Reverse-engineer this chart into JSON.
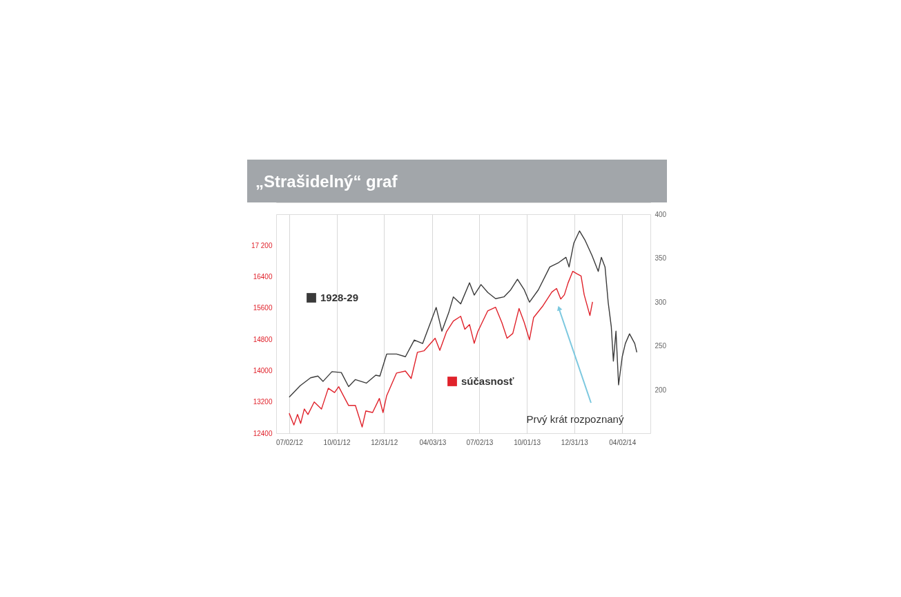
{
  "chart_data": {
    "type": "line",
    "title": "„Strašidelný“ graf",
    "series": [
      {
        "name": "súčasnosť",
        "color": "#e0222b",
        "axis": "y",
        "x": [
          "2012-07-02",
          "2012-07-11",
          "2012-07-18",
          "2012-07-24",
          "2012-07-31",
          "2012-08-07",
          "2012-08-19",
          "2012-09-02",
          "2012-09-15",
          "2012-09-27",
          "2012-10-05",
          "2012-10-14",
          "2012-10-24",
          "2012-11-06",
          "2012-11-19",
          "2012-11-26",
          "2012-12-09",
          "2012-12-22",
          "2012-12-29",
          "2013-01-05",
          "2013-01-24",
          "2013-02-10",
          "2013-02-21",
          "2013-03-05",
          "2013-03-18",
          "2013-04-08",
          "2013-04-17",
          "2013-04-30",
          "2013-05-13",
          "2013-05-27",
          "2013-06-04",
          "2013-06-13",
          "2013-06-22",
          "2013-06-29",
          "2013-07-18",
          "2013-08-02",
          "2013-08-14",
          "2013-08-24",
          "2013-09-04",
          "2013-09-16",
          "2013-09-26",
          "2013-10-06",
          "2013-10-14",
          "2013-11-01",
          "2013-11-18",
          "2013-11-27",
          "2013-12-05",
          "2013-12-12",
          "2013-12-19",
          "2013-12-28",
          "2014-01-06",
          "2014-01-13",
          "2014-01-19",
          "2014-01-30",
          "2014-02-04"
        ],
        "values": [
          12910,
          12610,
          12880,
          12650,
          13020,
          12880,
          13200,
          13020,
          13550,
          13440,
          13590,
          13360,
          13110,
          13110,
          12560,
          12970,
          12930,
          13290,
          12930,
          13360,
          13940,
          13990,
          13800,
          14470,
          14510,
          14830,
          14520,
          15000,
          15270,
          15390,
          15060,
          15180,
          14700,
          15000,
          15530,
          15620,
          15230,
          14830,
          14950,
          15590,
          15230,
          14790,
          15360,
          15660,
          16010,
          16100,
          15830,
          15940,
          16240,
          16540,
          16470,
          16420,
          15940,
          15410,
          15760
        ]
      },
      {
        "name": "1928-29",
        "color": "#3a3a3a",
        "axis": "y2",
        "x": [
          "2012-07-02",
          "2012-07-23",
          "2012-08-12",
          "2012-08-26",
          "2012-09-05",
          "2012-09-22",
          "2012-10-10",
          "2012-10-24",
          "2012-11-06",
          "2012-11-27",
          "2012-12-15",
          "2012-12-23",
          "2013-01-05",
          "2013-01-24",
          "2013-02-10",
          "2013-02-27",
          "2013-03-15",
          "2013-04-10",
          "2013-04-21",
          "2013-05-04",
          "2013-05-13",
          "2013-05-27",
          "2013-06-13",
          "2013-06-22",
          "2013-07-05",
          "2013-07-18",
          "2013-08-02",
          "2013-08-18",
          "2013-08-31",
          "2013-09-13",
          "2013-09-26",
          "2013-10-06",
          "2013-10-23",
          "2013-11-14",
          "2013-12-01",
          "2013-12-15",
          "2013-12-21",
          "2013-12-30",
          "2014-01-10",
          "2014-01-21",
          "2014-02-03",
          "2014-02-15",
          "2014-02-21",
          "2014-02-28",
          "2014-03-06",
          "2014-03-12",
          "2014-03-16",
          "2014-03-21",
          "2014-03-26",
          "2014-04-02",
          "2014-04-08",
          "2014-04-16",
          "2014-04-26",
          "2014-04-30"
        ],
        "values": [
          192,
          205,
          214,
          216,
          210,
          221,
          220,
          204,
          212,
          208,
          217,
          216,
          241,
          241,
          238,
          257,
          253,
          294,
          267,
          288,
          306,
          298,
          322,
          308,
          320,
          311,
          304,
          306,
          314,
          326,
          314,
          300,
          314,
          340,
          345,
          351,
          340,
          367,
          381,
          370,
          353,
          335,
          351,
          340,
          300,
          272,
          233,
          267,
          206,
          238,
          253,
          264,
          253,
          243
        ]
      }
    ],
    "xlim": [
      "2012-06-07",
      "2014-05-26"
    ],
    "xticks": [
      {
        "value": "2012-07-02",
        "label": "07/02/12"
      },
      {
        "value": "2012-10-01",
        "label": "10/01/12"
      },
      {
        "value": "2012-12-31",
        "label": "12/31/12"
      },
      {
        "value": "2013-04-03",
        "label": "04/03/13"
      },
      {
        "value": "2013-07-02",
        "label": "07/02/13"
      },
      {
        "value": "2013-10-01",
        "label": "10/01/13"
      },
      {
        "value": "2013-12-31",
        "label": "12/31/13"
      },
      {
        "value": "2014-04-02",
        "label": "04/02/14"
      }
    ],
    "ylim": [
      12400,
      18000
    ],
    "yticks": [
      12400,
      13200,
      14000,
      14800,
      15600,
      16400,
      {
        "value": 17200,
        "label": "17 200"
      }
    ],
    "y2lim": [
      151,
      400
    ],
    "y2ticks": [
      200,
      250,
      300,
      350,
      400
    ],
    "grid": "x",
    "legend": "left",
    "annotations": [
      "Prvý krát rozpoznaný"
    ]
  }
}
